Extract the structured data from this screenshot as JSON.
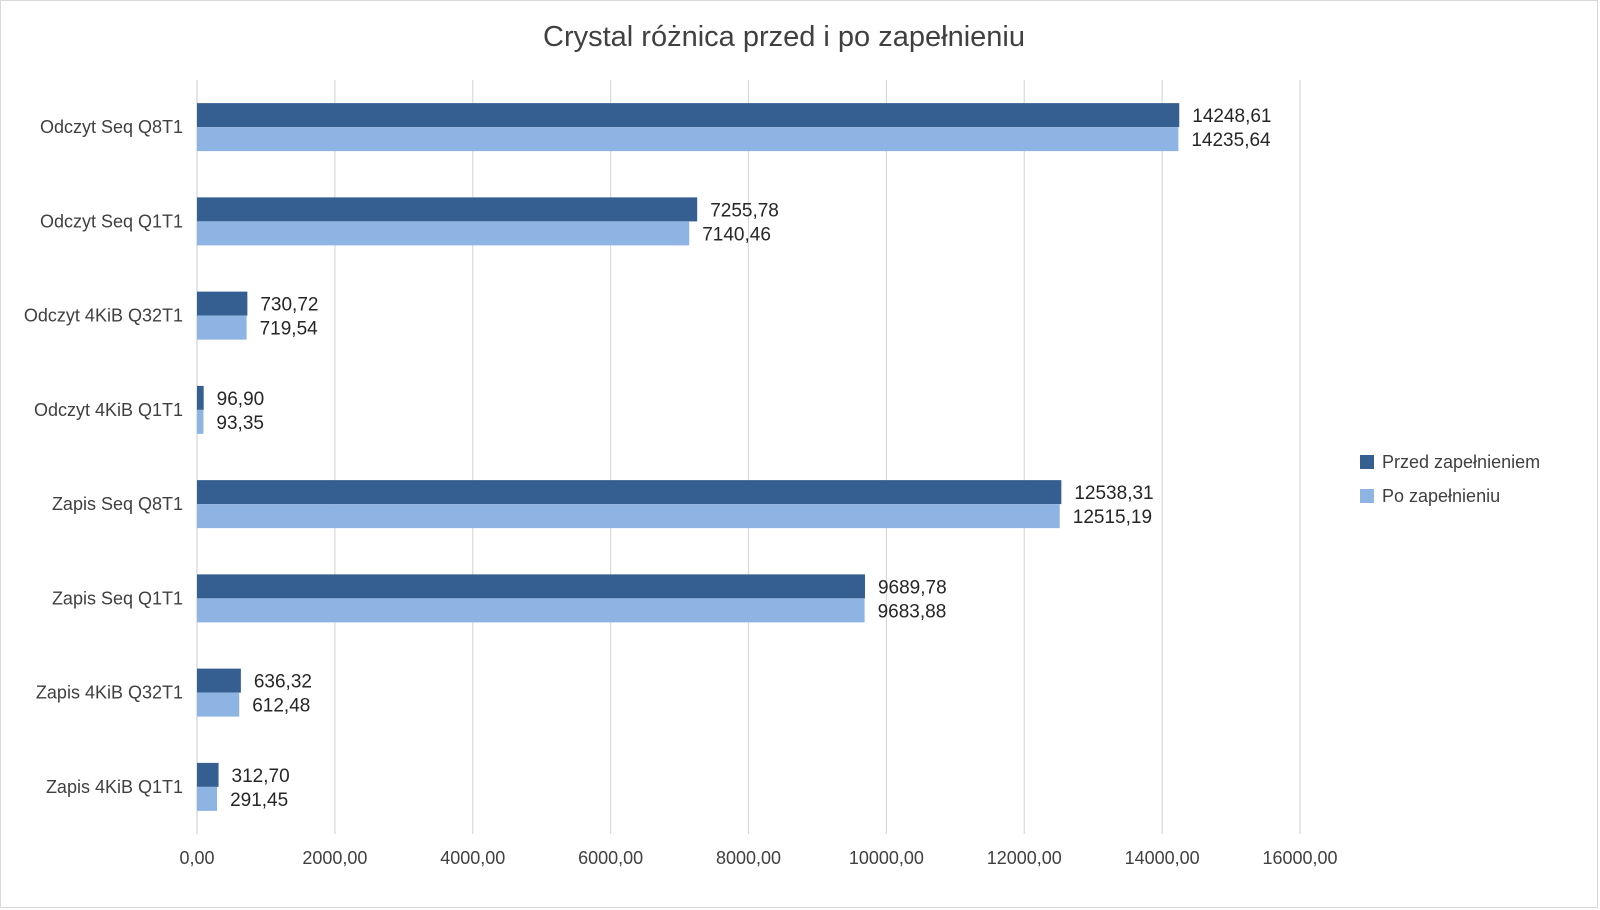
{
  "chart_data": {
    "type": "bar",
    "orientation": "horizontal",
    "title": "Crystal różnica przed i po zapełnieniu",
    "xlabel": "",
    "ylabel": "",
    "xlim": [
      0,
      16000
    ],
    "x_ticks": [
      "0,00",
      "2000,00",
      "4000,00",
      "6000,00",
      "8000,00",
      "10000,00",
      "12000,00",
      "14000,00",
      "16000,00"
    ],
    "x_tick_values": [
      0,
      2000,
      4000,
      6000,
      8000,
      10000,
      12000,
      14000,
      16000
    ],
    "grid": true,
    "legend_position": "right",
    "categories": [
      "Odczyt Seq Q8T1",
      "Odczyt Seq Q1T1",
      "Odczyt 4KiB Q32T1",
      "Odczyt 4KiB Q1T1",
      "Zapis Seq Q8T1",
      "Zapis Seq Q1T1",
      "Zapis 4KiB Q32T1",
      "Zapis 4KiB Q1T1"
    ],
    "series": [
      {
        "name": "Przed zapełnieniem",
        "color": "#355F91",
        "values": [
          14248.61,
          7255.78,
          730.72,
          96.9,
          12538.31,
          9689.78,
          636.32,
          312.7
        ],
        "labels": [
          "14248,61",
          "7255,78",
          "730,72",
          "96,90",
          "12538,31",
          "9689,78",
          "636,32",
          "312,70"
        ]
      },
      {
        "name": "Po zapełnieniu",
        "color": "#8EB4E3",
        "values": [
          14235.64,
          7140.46,
          719.54,
          93.35,
          12515.19,
          9683.88,
          612.48,
          291.45
        ],
        "labels": [
          "14235,64",
          "7140,46",
          "719,54",
          "93,35",
          "12515,19",
          "9683,88",
          "612,48",
          "291,45"
        ]
      }
    ]
  }
}
